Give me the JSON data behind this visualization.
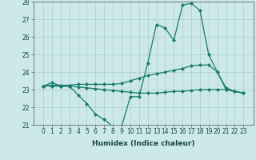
{
  "xlabel": "Humidex (Indice chaleur)",
  "x": [
    0,
    1,
    2,
    3,
    4,
    5,
    6,
    7,
    8,
    9,
    10,
    11,
    12,
    13,
    14,
    15,
    16,
    17,
    18,
    19,
    20,
    21,
    22,
    23
  ],
  "line1": [
    23.2,
    23.4,
    23.2,
    23.2,
    22.7,
    22.2,
    21.6,
    21.3,
    20.9,
    20.9,
    22.6,
    22.6,
    24.5,
    26.7,
    26.5,
    25.8,
    27.8,
    27.9,
    27.5,
    25.0,
    24.0,
    23.0,
    22.9,
    22.8
  ],
  "line2": [
    23.2,
    23.2,
    23.2,
    23.2,
    23.15,
    23.1,
    23.05,
    23.0,
    22.95,
    22.9,
    22.85,
    22.8,
    22.8,
    22.8,
    22.85,
    22.9,
    22.9,
    22.95,
    23.0,
    23.0,
    23.0,
    23.0,
    22.9,
    22.8
  ],
  "line3": [
    23.2,
    23.25,
    23.25,
    23.25,
    23.3,
    23.3,
    23.3,
    23.3,
    23.3,
    23.35,
    23.5,
    23.65,
    23.8,
    23.9,
    24.0,
    24.1,
    24.2,
    24.35,
    24.4,
    24.4,
    24.0,
    23.1,
    22.9,
    22.8
  ],
  "color": "#1a7a6e",
  "bg_color": "#cce8e8",
  "grid_color": "#aacccc",
  "ylim": [
    21,
    28
  ],
  "yticks": [
    21,
    22,
    23,
    24,
    25,
    26,
    27,
    28
  ],
  "xticks": [
    0,
    1,
    2,
    3,
    4,
    5,
    6,
    7,
    8,
    9,
    10,
    11,
    12,
    13,
    14,
    15,
    16,
    17,
    18,
    19,
    20,
    21,
    22,
    23
  ],
  "marker": "D",
  "markersize": 2.0,
  "linewidth": 0.9,
  "tick_fontsize": 5.5,
  "label_fontsize": 6.5
}
